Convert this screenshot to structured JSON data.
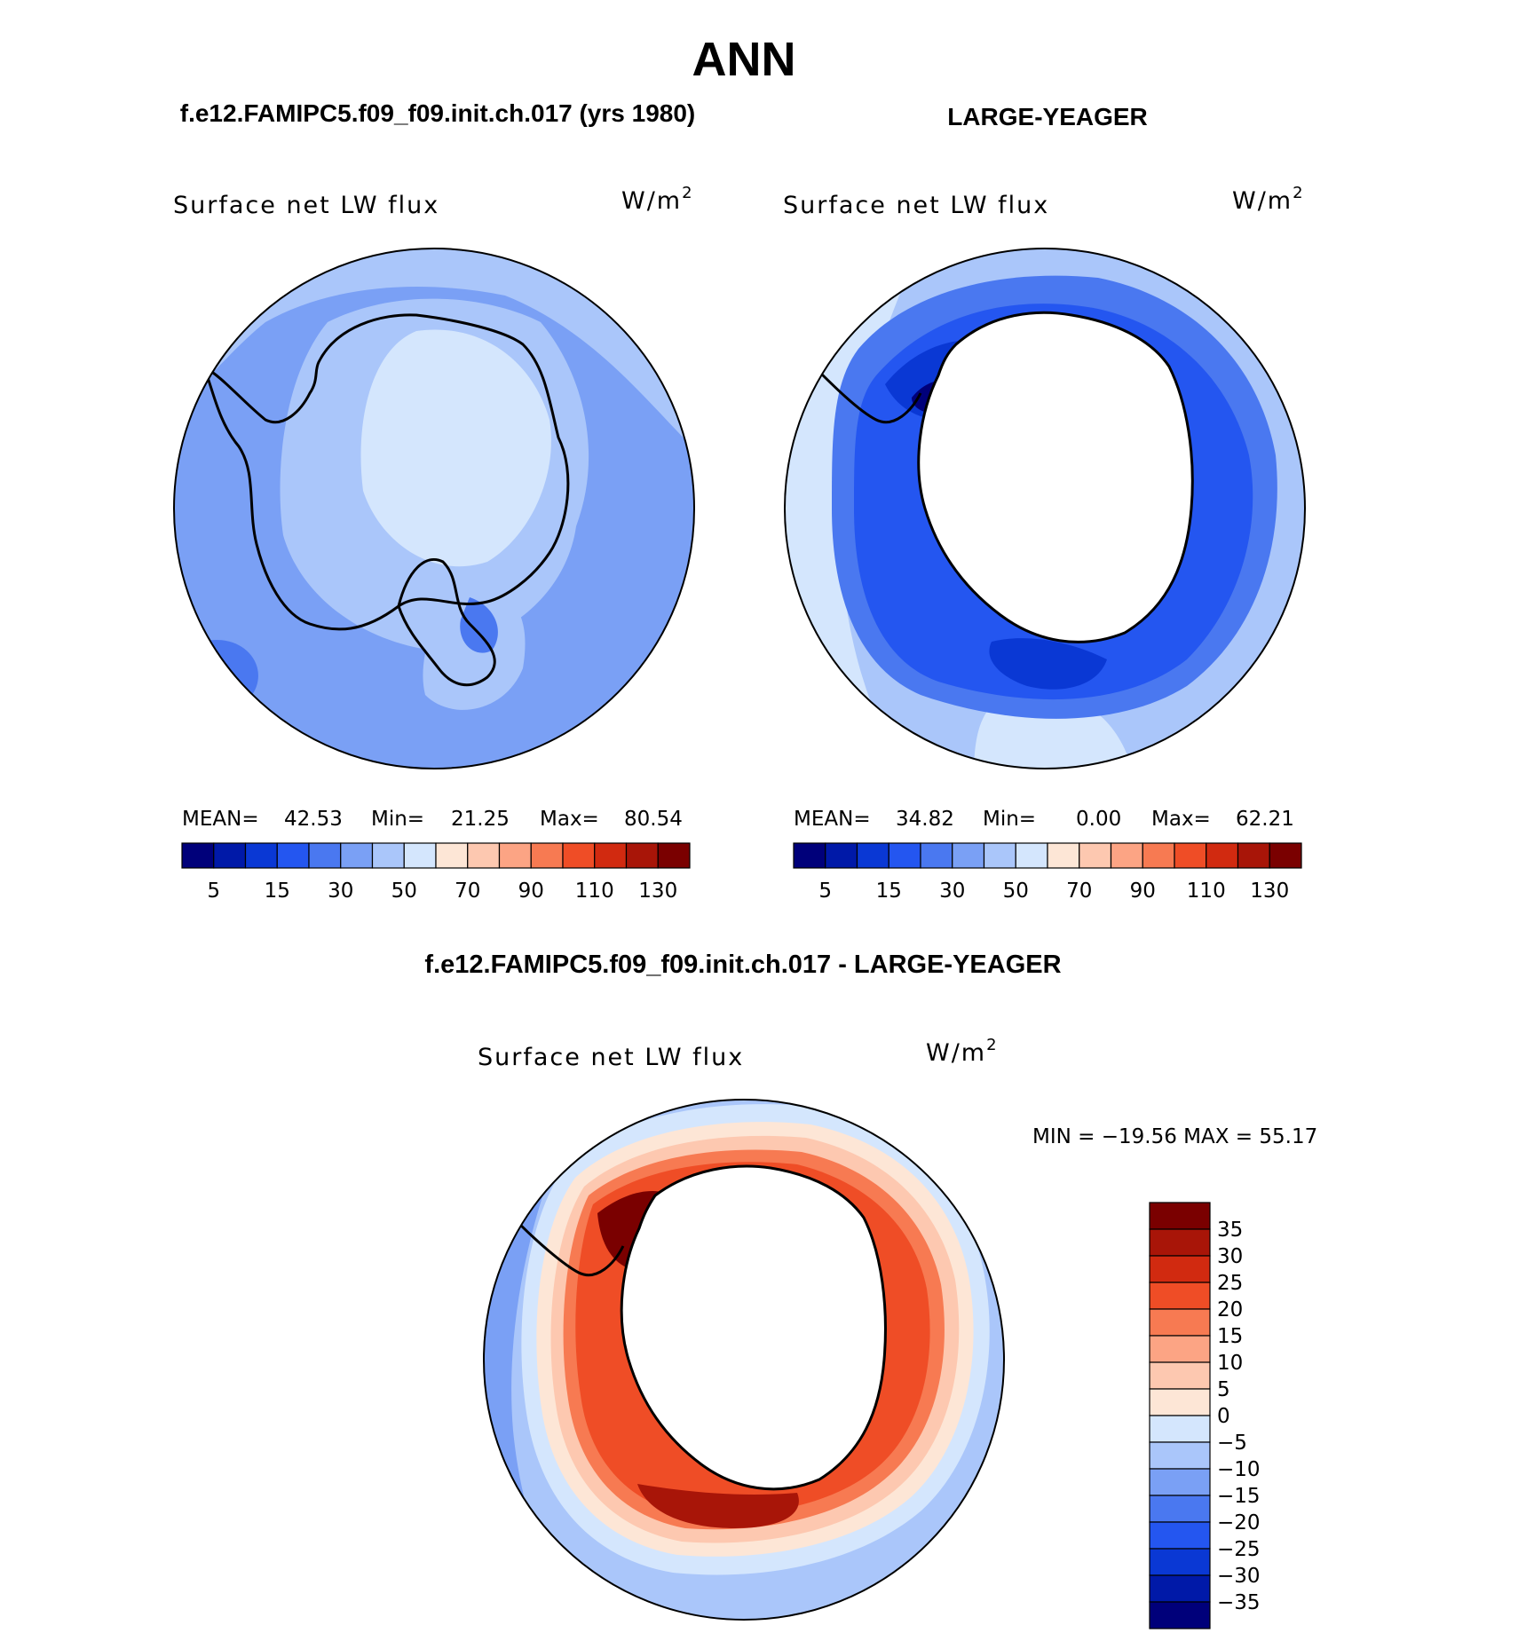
{
  "main_title": "ANN",
  "panels": [
    {
      "header": "f.e12.FAMIPC5.f09_f09.init.ch.017 (yrs 1980)",
      "var_label": "Surface net LW flux",
      "unit_base": "W/m",
      "unit_exp": "2",
      "stats": {
        "mean_label": "MEAN=",
        "mean": "42.53",
        "min_label": "Min=",
        "min": "21.25",
        "max_label": "Max=",
        "max": "80.54"
      },
      "colorbar_ticks": [
        "5",
        "15",
        "30",
        "50",
        "70",
        "90",
        "110",
        "130"
      ]
    },
    {
      "header": "LARGE-YEAGER",
      "var_label": "Surface net LW flux",
      "unit_base": "W/m",
      "unit_exp": "2",
      "stats": {
        "mean_label": "MEAN=",
        "mean": "34.82",
        "min_label": "Min=",
        "min": "0.00",
        "max_label": "Max=",
        "max": "62.21"
      },
      "colorbar_ticks": [
        "5",
        "15",
        "30",
        "50",
        "70",
        "90",
        "110",
        "130"
      ]
    }
  ],
  "diff_panel": {
    "header": "f.e12.FAMIPC5.f09_f09.init.ch.017 - LARGE-YEAGER",
    "var_label": "Surface net LW flux",
    "unit_base": "W/m",
    "unit_exp": "2",
    "minmax": "MIN = −19.56 MAX =   55.17",
    "colorbar_ticks": [
      "35",
      "30",
      "25",
      "20",
      "15",
      "10",
      "5",
      "0",
      "−5",
      "−10",
      "−15",
      "−20",
      "−25",
      "−30",
      "−35"
    ]
  },
  "colors": {
    "abs_scale": [
      "#00007a",
      "#0019a8",
      "#0a38d4",
      "#2456f0",
      "#4a78f0",
      "#7aa0f5",
      "#aac6fa",
      "#d4e6fd",
      "#fde6d6",
      "#fdc8b0",
      "#fca484",
      "#f77a52",
      "#ef4d26",
      "#d12a10",
      "#a81508",
      "#7a0000"
    ],
    "diff_scale": [
      "#7a0000",
      "#a81508",
      "#d12a10",
      "#ef4d26",
      "#f77a52",
      "#fca484",
      "#fdc8b0",
      "#fde6d6",
      "#d4e6fd",
      "#aac6fa",
      "#7aa0f5",
      "#4a78f0",
      "#2456f0",
      "#0a38d4",
      "#0019a8",
      "#00007a"
    ]
  }
}
